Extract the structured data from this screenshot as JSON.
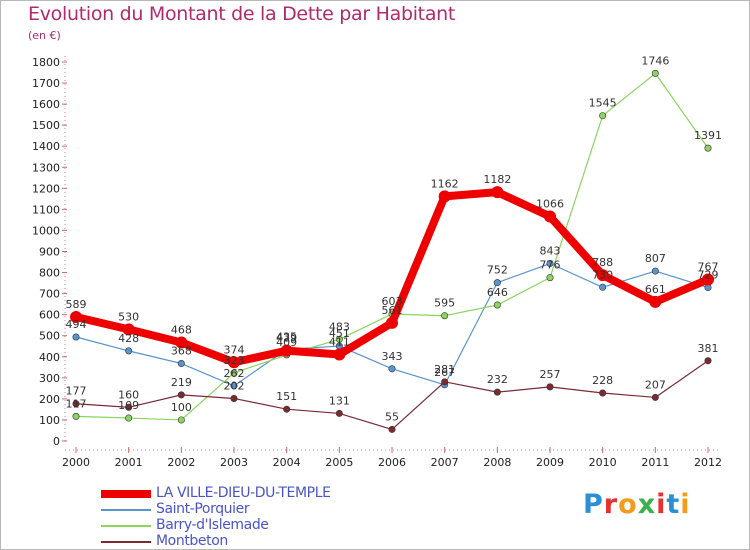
{
  "title": "Evolution du Montant de la Dette par Habitant",
  "subtitle": "(en €)",
  "logo": {
    "text": "Proxiti",
    "colors": [
      "#2b8fd6",
      "#e8312f",
      "#f39c1b",
      "#3ab04a",
      "#e8312f",
      "#2b8fd6",
      "#f39c1b"
    ]
  },
  "chart_data": {
    "type": "line",
    "x": [
      "2000",
      "2001",
      "2002",
      "2003",
      "2004",
      "2005",
      "2006",
      "2007",
      "2008",
      "2009",
      "2010",
      "2011",
      "2012"
    ],
    "ylim": [
      0,
      1800
    ],
    "yticks": [
      0,
      100,
      200,
      300,
      400,
      500,
      600,
      700,
      800,
      900,
      1000,
      1100,
      1200,
      1300,
      1400,
      1500,
      1600,
      1700,
      1800
    ],
    "grid": false,
    "legend_position": "bottom-left",
    "series": [
      {
        "name": "Saint-Porquier",
        "color": "#5a94cf",
        "width": 1.2,
        "values": [
          494,
          428,
          368,
          262,
          435,
          451,
          343,
          267,
          752,
          843,
          730,
          807,
          729
        ]
      },
      {
        "name": "Barry-d'Islemade",
        "color": "#8dd35f",
        "width": 1.2,
        "values": [
          117,
          109,
          100,
          323,
          409,
          483,
          603,
          595,
          646,
          776,
          1545,
          1746,
          1391
        ]
      },
      {
        "name": "Montbeton",
        "color": "#7b2a32",
        "width": 1.2,
        "values": [
          177,
          160,
          219,
          202,
          151,
          131,
          55,
          281,
          232,
          257,
          228,
          207,
          381
        ]
      },
      {
        "name": "LA VILLE-DIEU-DU-TEMPLE",
        "color": "#ee0000",
        "width": 8,
        "values": [
          589,
          530,
          468,
          374,
          429,
          411,
          561,
          1162,
          1182,
          1066,
          788,
          661,
          767
        ]
      }
    ],
    "legend_order": [
      "LA VILLE-DIEU-DU-TEMPLE",
      "Saint-Porquier",
      "Barry-d'Islemade",
      "Montbeton"
    ]
  }
}
